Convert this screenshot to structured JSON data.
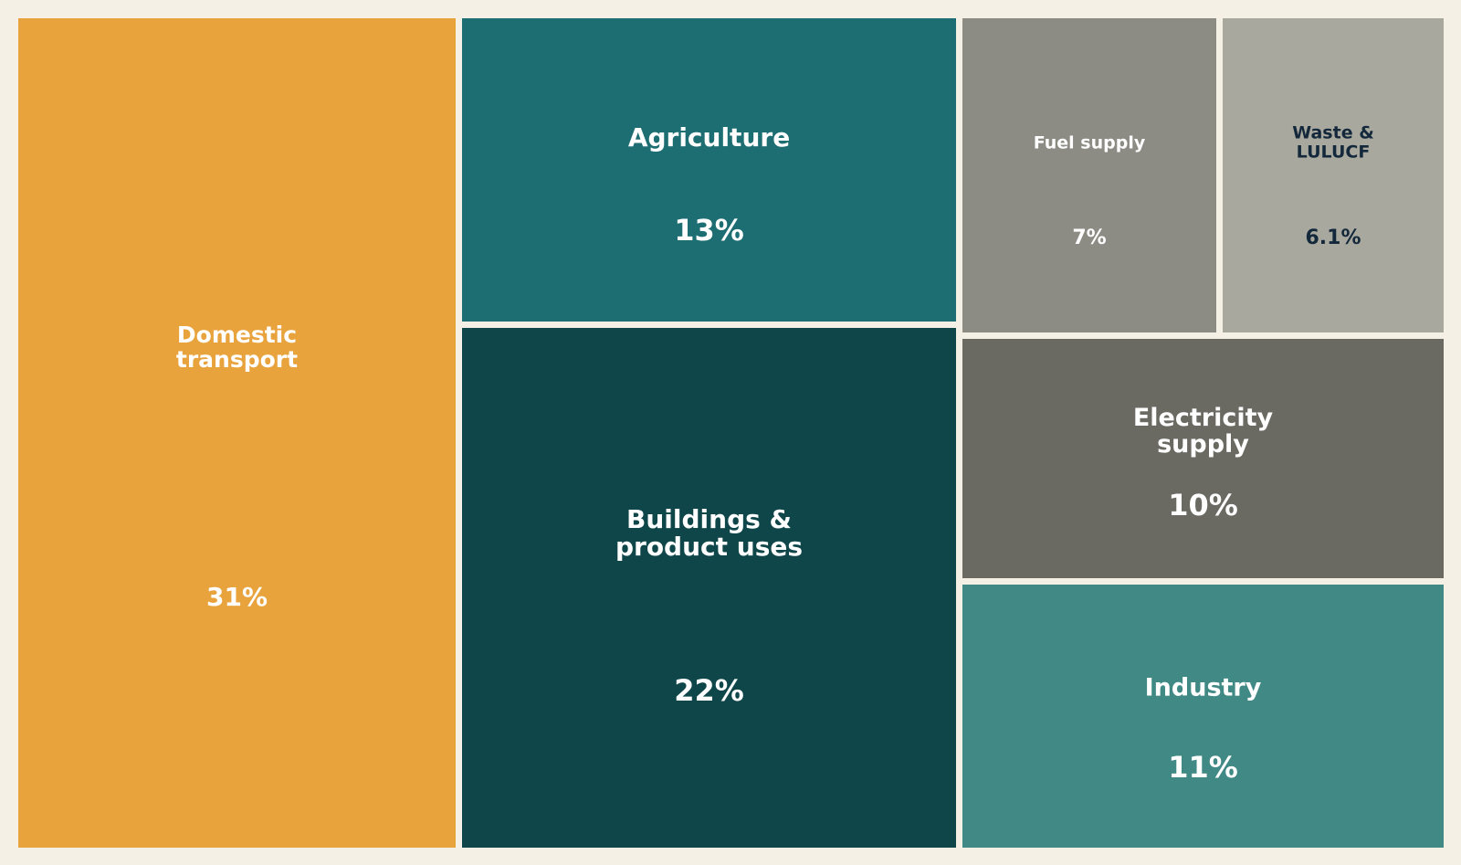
{
  "colors": {
    "background": "#f5f0e6",
    "text_light": "#ffffff",
    "text_dark": "#13283a"
  },
  "chart_data": {
    "type": "treemap",
    "title": "",
    "unit": "%",
    "items": [
      {
        "label": "Domestic\ntransport",
        "value": 31,
        "value_label": "31%",
        "color": "#e8a33d",
        "text_color": "light"
      },
      {
        "label": "Buildings &\nproduct uses",
        "value": 22,
        "value_label": "22%",
        "color": "#0f4649",
        "text_color": "light"
      },
      {
        "label": "Agriculture",
        "value": 13,
        "value_label": "13%",
        "color": "#1c6e72",
        "text_color": "light"
      },
      {
        "label": "Industry",
        "value": 11,
        "value_label": "11%",
        "color": "#408985",
        "text_color": "light"
      },
      {
        "label": "Electricity\nsupply",
        "value": 10,
        "value_label": "10%",
        "color": "#6a6a63",
        "text_color": "light"
      },
      {
        "label": "Fuel supply",
        "value": 7,
        "value_label": "7%",
        "color": "#8c8c84",
        "text_color": "light"
      },
      {
        "label": "Waste &\nLULUCF",
        "value": 6.1,
        "value_label": "6.1%",
        "color": "#a8a89f",
        "text_color": "dark"
      }
    ]
  }
}
